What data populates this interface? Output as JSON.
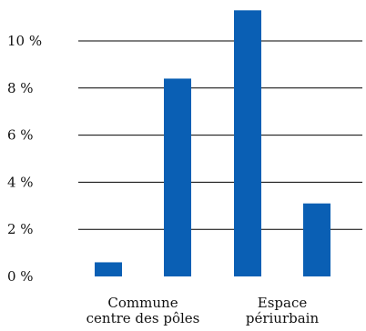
{
  "chart_data": {
    "type": "bar",
    "title": "",
    "xlabel": "",
    "ylabel": "",
    "ylim": [
      0,
      11.5
    ],
    "yticks": [
      0,
      2,
      4,
      6,
      8,
      10
    ],
    "ytick_labels": [
      "0 %",
      "2 %",
      "4 %",
      "6 %",
      "8 %",
      "10 %"
    ],
    "grid": true,
    "bar_color": "#0a5fb4",
    "values": [
      0.6,
      8.4,
      11.3,
      3.1
    ],
    "groups": [
      {
        "label_lines": [
          "Commune",
          "centre des pôles"
        ],
        "bars": [
          0,
          1
        ]
      },
      {
        "label_lines": [
          "Espace",
          "périurbain"
        ],
        "bars": [
          2,
          3
        ]
      }
    ]
  }
}
